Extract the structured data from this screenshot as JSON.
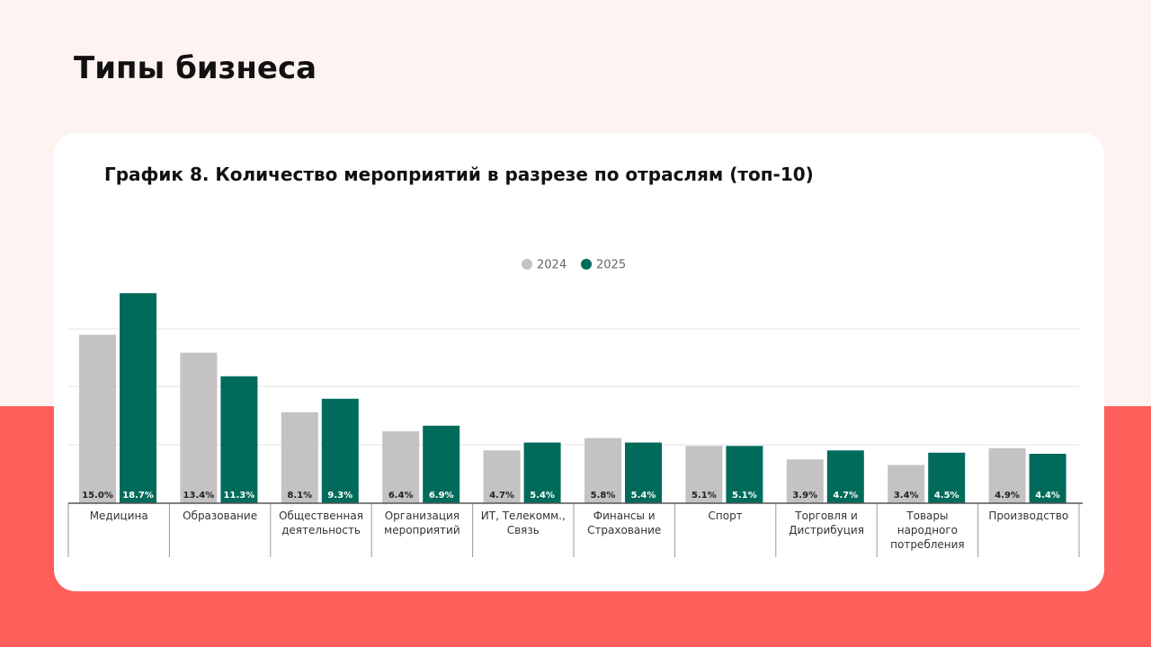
{
  "header": {
    "title": "Типы бизнеса"
  },
  "chart_data": {
    "type": "bar",
    "title": "График 8. Количество мероприятий в разрезе по отраслям (топ-10)",
    "categories": [
      "Медицина",
      "Образование",
      "Общественная деятельность",
      "Организация мероприятий",
      "ИТ, Телекомм., Связь",
      "Финансы и Страхование",
      "Спорт",
      "Торговля и Дистрибуция",
      "Товары народного потребления",
      "Производство"
    ],
    "series": [
      {
        "name": "2024",
        "color": "#c4c2c3",
        "values": [
          15.0,
          13.4,
          8.1,
          6.4,
          4.7,
          5.8,
          5.1,
          3.9,
          3.4,
          4.9
        ],
        "value_labels": [
          "15.0%",
          "13.4%",
          "8.1%",
          "6.4%",
          "4.7%",
          "5.8%",
          "5.1%",
          "3.9%",
          "3.4%",
          "4.9%"
        ]
      },
      {
        "name": "2025",
        "color": "#006b5b",
        "values": [
          18.7,
          11.3,
          9.3,
          6.9,
          5.4,
          5.4,
          5.1,
          4.7,
          4.5,
          4.4
        ],
        "value_labels": [
          "18.7%",
          "11.3%",
          "9.3%",
          "6.9%",
          "5.4%",
          "5.4%",
          "5.1%",
          "4.7%",
          "4.5%",
          "4.4%"
        ]
      }
    ],
    "ylim": [
      0,
      20
    ],
    "legend": "top"
  }
}
